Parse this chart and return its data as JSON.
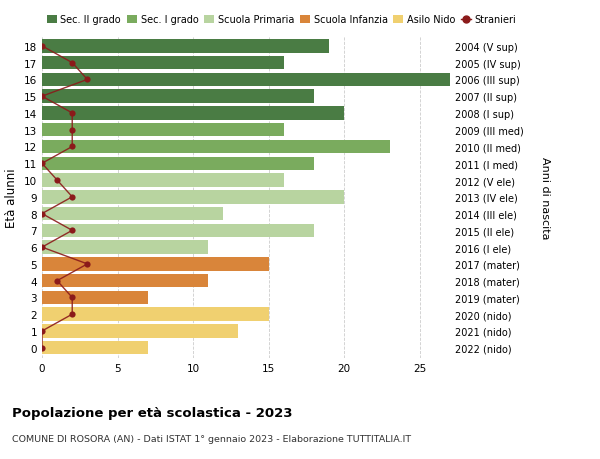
{
  "ages": [
    18,
    17,
    16,
    15,
    14,
    13,
    12,
    11,
    10,
    9,
    8,
    7,
    6,
    5,
    4,
    3,
    2,
    1,
    0
  ],
  "years": [
    "2004 (V sup)",
    "2005 (IV sup)",
    "2006 (III sup)",
    "2007 (II sup)",
    "2008 (I sup)",
    "2009 (III med)",
    "2010 (II med)",
    "2011 (I med)",
    "2012 (V ele)",
    "2013 (IV ele)",
    "2014 (III ele)",
    "2015 (II ele)",
    "2016 (I ele)",
    "2017 (mater)",
    "2018 (mater)",
    "2019 (mater)",
    "2020 (nido)",
    "2021 (nido)",
    "2022 (nido)"
  ],
  "bar_values": [
    19,
    16,
    27,
    18,
    20,
    16,
    23,
    18,
    16,
    20,
    12,
    18,
    11,
    15,
    11,
    7,
    15,
    13,
    7
  ],
  "bar_colors": [
    "#4a7c44",
    "#4a7c44",
    "#4a7c44",
    "#4a7c44",
    "#4a7c44",
    "#7aab5e",
    "#7aab5e",
    "#7aab5e",
    "#b8d4a0",
    "#b8d4a0",
    "#b8d4a0",
    "#b8d4a0",
    "#b8d4a0",
    "#d9853a",
    "#d9853a",
    "#d9853a",
    "#f0d070",
    "#f0d070",
    "#f0d070"
  ],
  "stranieri_values": [
    0,
    2,
    3,
    0,
    2,
    2,
    2,
    0,
    1,
    2,
    0,
    2,
    0,
    3,
    1,
    2,
    2,
    0,
    0
  ],
  "legend_labels": [
    "Sec. II grado",
    "Sec. I grado",
    "Scuola Primaria",
    "Scuola Infanzia",
    "Asilo Nido",
    "Stranieri"
  ],
  "legend_colors": [
    "#4a7c44",
    "#7aab5e",
    "#b8d4a0",
    "#d9853a",
    "#f0d070",
    "#8b0000"
  ],
  "title": "Popolazione per età scolastica - 2023",
  "subtitle": "COMUNE DI ROSORA (AN) - Dati ISTAT 1° gennaio 2023 - Elaborazione TUTTITALIA.IT",
  "ylabel_left": "Età alunni",
  "ylabel_right": "Anni di nascita",
  "xlim": [
    0,
    27
  ],
  "xticks": [
    0,
    5,
    10,
    15,
    20,
    25
  ],
  "bg_color": "#ffffff",
  "bar_height": 0.8,
  "stranieri_line_color": "#8b1a1a",
  "stranieri_marker_color": "#8b1a1a",
  "grid_color": "#cccccc"
}
